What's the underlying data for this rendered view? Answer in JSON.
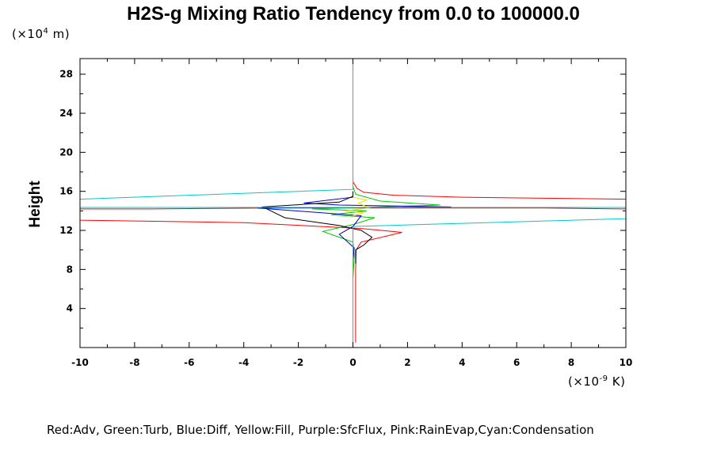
{
  "chart_data": {
    "type": "line",
    "title": "H2S-g Mixing Ratio Tendency from 0.0 to 100000.0",
    "ylabel": "Height",
    "y_unit": {
      "prefix": "(×10",
      "exp": "4",
      "suffix": " m)"
    },
    "x_unit": {
      "prefix": "(×10",
      "exp": "-9",
      "suffix": " K)"
    },
    "xlim": [
      -10,
      10
    ],
    "ylim": [
      0,
      29.6
    ],
    "x_ticks": [
      -10,
      -8,
      -6,
      -4,
      -2,
      0,
      2,
      4,
      6,
      8,
      10
    ],
    "y_ticks": [
      4,
      8,
      12,
      16,
      20,
      24,
      28
    ],
    "legend_text": "Red:Adv, Green:Turb, Blue:Diff, Yellow:Fill, Purple:SfcFlux, Pink:RainEvap,Cyan:Condensation",
    "series": [
      {
        "color": "#ff0000",
        "points": [
          [
            0.1,
            0.5
          ],
          [
            0.1,
            4
          ],
          [
            0.1,
            8
          ],
          [
            0.12,
            10
          ],
          [
            0.3,
            10.8
          ],
          [
            1.8,
            11.8
          ],
          [
            0.3,
            12.2
          ],
          [
            -4,
            12.8
          ],
          [
            -10,
            13.05
          ],
          [
            -10,
            14.2
          ],
          [
            -7.4,
            14.2
          ],
          [
            -3,
            14.3
          ],
          [
            7,
            14.3
          ],
          [
            10,
            14.2
          ],
          [
            10,
            15.2
          ],
          [
            4,
            15.4
          ],
          [
            1.5,
            15.6
          ],
          [
            0.4,
            15.9
          ],
          [
            0.15,
            16.3
          ],
          [
            0,
            17
          ]
        ]
      },
      {
        "color": "#00c800",
        "points": [
          [
            0,
            0.5
          ],
          [
            0,
            7
          ],
          [
            0.05,
            9.5
          ],
          [
            0,
            10.8
          ],
          [
            -1.1,
            11.9
          ],
          [
            0,
            12.6
          ],
          [
            0.8,
            13.3
          ],
          [
            -0.8,
            13.6
          ],
          [
            0.5,
            14
          ],
          [
            -1.5,
            14.2
          ],
          [
            3.2,
            14.6
          ],
          [
            1,
            15
          ],
          [
            0.1,
            15.7
          ],
          [
            0,
            16.5
          ]
        ]
      },
      {
        "color": "#0000c8",
        "points": [
          [
            0,
            0.5
          ],
          [
            0,
            9
          ],
          [
            0.05,
            10.2
          ],
          [
            -0.5,
            11.6
          ],
          [
            0,
            12.4
          ],
          [
            0.3,
            13.5
          ],
          [
            -3.5,
            14.3
          ],
          [
            3.6,
            14.4
          ],
          [
            -0.5,
            14.6
          ],
          [
            -1.8,
            14.8
          ],
          [
            0,
            15.4
          ],
          [
            0,
            16
          ]
        ]
      },
      {
        "color": "#000000",
        "points": [
          [
            0.1,
            8.6
          ],
          [
            0.1,
            10
          ],
          [
            0.4,
            10.5
          ],
          [
            0.7,
            11.3
          ],
          [
            0.3,
            12
          ],
          [
            -0.5,
            12.5
          ],
          [
            -2.5,
            13.3
          ],
          [
            -3.3,
            14.4
          ],
          [
            -0.5,
            14.9
          ],
          [
            0,
            15.5
          ],
          [
            0,
            16
          ]
        ]
      },
      {
        "color": "#e6e600",
        "points": [
          [
            0,
            13.5
          ],
          [
            0.4,
            13.8
          ],
          [
            -0.3,
            14
          ],
          [
            0.6,
            14.3
          ],
          [
            0.2,
            14.8
          ],
          [
            0.5,
            15.1
          ],
          [
            0,
            15.4
          ]
        ]
      },
      {
        "color": "#00c8c8",
        "points": [
          [
            0,
            0.3
          ],
          [
            0,
            12.4
          ],
          [
            10,
            13.2
          ],
          [
            10,
            14.35
          ],
          [
            -10,
            14.35
          ],
          [
            -10,
            15.2
          ],
          [
            0,
            16.2
          ],
          [
            0,
            29.6
          ]
        ]
      }
    ]
  }
}
